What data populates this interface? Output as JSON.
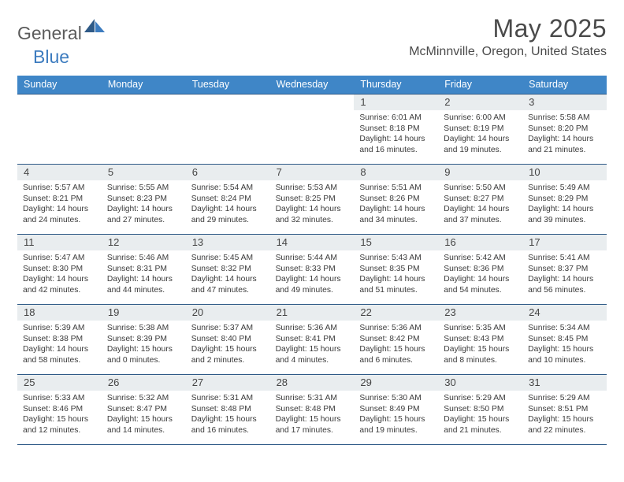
{
  "brand": {
    "part1": "General",
    "part2": "Blue"
  },
  "title": "May 2025",
  "location": "McMinnville, Oregon, United States",
  "colors": {
    "header_bg": "#3f86c7",
    "header_text": "#ffffff",
    "rule": "#2f5a87",
    "daynum_bg": "#e9edef",
    "text": "#3a3a3a",
    "logo_gray": "#5b5b5b",
    "logo_blue": "#3d7cbf"
  },
  "weekdays": [
    "Sunday",
    "Monday",
    "Tuesday",
    "Wednesday",
    "Thursday",
    "Friday",
    "Saturday"
  ],
  "weeks": [
    [
      {
        "n": "",
        "sr": "",
        "ss": "",
        "dl": ""
      },
      {
        "n": "",
        "sr": "",
        "ss": "",
        "dl": ""
      },
      {
        "n": "",
        "sr": "",
        "ss": "",
        "dl": ""
      },
      {
        "n": "",
        "sr": "",
        "ss": "",
        "dl": ""
      },
      {
        "n": "1",
        "sr": "6:01 AM",
        "ss": "8:18 PM",
        "dl": "14 hours and 16 minutes."
      },
      {
        "n": "2",
        "sr": "6:00 AM",
        "ss": "8:19 PM",
        "dl": "14 hours and 19 minutes."
      },
      {
        "n": "3",
        "sr": "5:58 AM",
        "ss": "8:20 PM",
        "dl": "14 hours and 21 minutes."
      }
    ],
    [
      {
        "n": "4",
        "sr": "5:57 AM",
        "ss": "8:21 PM",
        "dl": "14 hours and 24 minutes."
      },
      {
        "n": "5",
        "sr": "5:55 AM",
        "ss": "8:23 PM",
        "dl": "14 hours and 27 minutes."
      },
      {
        "n": "6",
        "sr": "5:54 AM",
        "ss": "8:24 PM",
        "dl": "14 hours and 29 minutes."
      },
      {
        "n": "7",
        "sr": "5:53 AM",
        "ss": "8:25 PM",
        "dl": "14 hours and 32 minutes."
      },
      {
        "n": "8",
        "sr": "5:51 AM",
        "ss": "8:26 PM",
        "dl": "14 hours and 34 minutes."
      },
      {
        "n": "9",
        "sr": "5:50 AM",
        "ss": "8:27 PM",
        "dl": "14 hours and 37 minutes."
      },
      {
        "n": "10",
        "sr": "5:49 AM",
        "ss": "8:29 PM",
        "dl": "14 hours and 39 minutes."
      }
    ],
    [
      {
        "n": "11",
        "sr": "5:47 AM",
        "ss": "8:30 PM",
        "dl": "14 hours and 42 minutes."
      },
      {
        "n": "12",
        "sr": "5:46 AM",
        "ss": "8:31 PM",
        "dl": "14 hours and 44 minutes."
      },
      {
        "n": "13",
        "sr": "5:45 AM",
        "ss": "8:32 PM",
        "dl": "14 hours and 47 minutes."
      },
      {
        "n": "14",
        "sr": "5:44 AM",
        "ss": "8:33 PM",
        "dl": "14 hours and 49 minutes."
      },
      {
        "n": "15",
        "sr": "5:43 AM",
        "ss": "8:35 PM",
        "dl": "14 hours and 51 minutes."
      },
      {
        "n": "16",
        "sr": "5:42 AM",
        "ss": "8:36 PM",
        "dl": "14 hours and 54 minutes."
      },
      {
        "n": "17",
        "sr": "5:41 AM",
        "ss": "8:37 PM",
        "dl": "14 hours and 56 minutes."
      }
    ],
    [
      {
        "n": "18",
        "sr": "5:39 AM",
        "ss": "8:38 PM",
        "dl": "14 hours and 58 minutes."
      },
      {
        "n": "19",
        "sr": "5:38 AM",
        "ss": "8:39 PM",
        "dl": "15 hours and 0 minutes."
      },
      {
        "n": "20",
        "sr": "5:37 AM",
        "ss": "8:40 PM",
        "dl": "15 hours and 2 minutes."
      },
      {
        "n": "21",
        "sr": "5:36 AM",
        "ss": "8:41 PM",
        "dl": "15 hours and 4 minutes."
      },
      {
        "n": "22",
        "sr": "5:36 AM",
        "ss": "8:42 PM",
        "dl": "15 hours and 6 minutes."
      },
      {
        "n": "23",
        "sr": "5:35 AM",
        "ss": "8:43 PM",
        "dl": "15 hours and 8 minutes."
      },
      {
        "n": "24",
        "sr": "5:34 AM",
        "ss": "8:45 PM",
        "dl": "15 hours and 10 minutes."
      }
    ],
    [
      {
        "n": "25",
        "sr": "5:33 AM",
        "ss": "8:46 PM",
        "dl": "15 hours and 12 minutes."
      },
      {
        "n": "26",
        "sr": "5:32 AM",
        "ss": "8:47 PM",
        "dl": "15 hours and 14 minutes."
      },
      {
        "n": "27",
        "sr": "5:31 AM",
        "ss": "8:48 PM",
        "dl": "15 hours and 16 minutes."
      },
      {
        "n": "28",
        "sr": "5:31 AM",
        "ss": "8:48 PM",
        "dl": "15 hours and 17 minutes."
      },
      {
        "n": "29",
        "sr": "5:30 AM",
        "ss": "8:49 PM",
        "dl": "15 hours and 19 minutes."
      },
      {
        "n": "30",
        "sr": "5:29 AM",
        "ss": "8:50 PM",
        "dl": "15 hours and 21 minutes."
      },
      {
        "n": "31",
        "sr": "5:29 AM",
        "ss": "8:51 PM",
        "dl": "15 hours and 22 minutes."
      }
    ]
  ],
  "labels": {
    "sunrise": "Sunrise: ",
    "sunset": "Sunset: ",
    "daylight": "Daylight: "
  }
}
